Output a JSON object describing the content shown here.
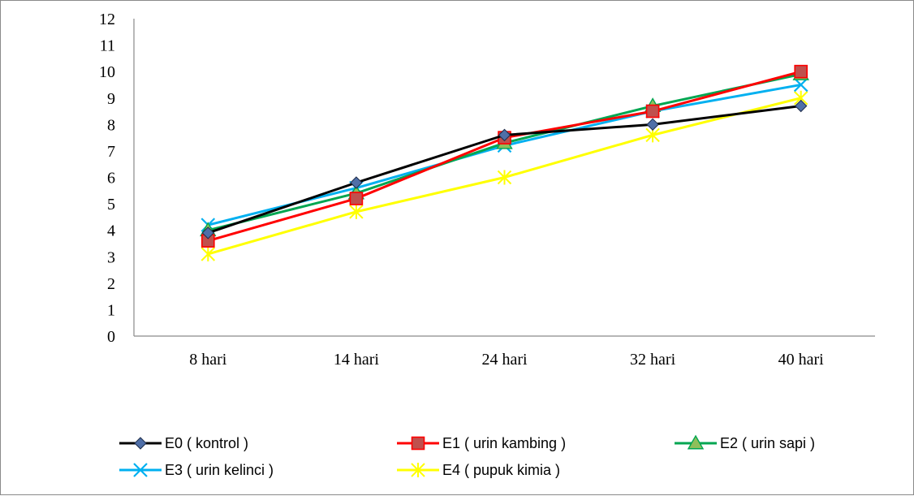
{
  "chart_data": {
    "type": "line",
    "title": "",
    "xlabel": "",
    "ylabel": "",
    "categories": [
      "8 hari",
      "14 hari",
      "24 hari",
      "32 hari",
      "40 hari"
    ],
    "ylim": [
      0,
      12
    ],
    "yticks": [
      0,
      1,
      2,
      3,
      4,
      5,
      6,
      7,
      8,
      9,
      10,
      11,
      12
    ],
    "grid": false,
    "legend_position": "bottom",
    "series": [
      {
        "name": "E0 ( kontrol )",
        "values": [
          3.9,
          5.8,
          7.6,
          8.0,
          8.7
        ],
        "color": "#000000",
        "marker": "diamond",
        "marker_fill": "#4f6fa8"
      },
      {
        "name": "E1 ( urin kambing )",
        "values": [
          3.6,
          5.2,
          7.5,
          8.5,
          10.0
        ],
        "color": "#ff0000",
        "marker": "square",
        "marker_fill": "#c0504d"
      },
      {
        "name": "E2 ( urin sapi )",
        "values": [
          4.0,
          5.4,
          7.3,
          8.7,
          9.9
        ],
        "color": "#00a651",
        "marker": "triangle",
        "marker_fill": "#8fbf5a"
      },
      {
        "name": "E3 ( urin kelinci )",
        "values": [
          4.2,
          5.6,
          7.2,
          8.5,
          9.5
        ],
        "color": "#00b0f0",
        "marker": "x",
        "marker_fill": "#00b0f0"
      },
      {
        "name": "E4 ( pupuk kimia )",
        "values": [
          3.1,
          4.7,
          6.0,
          7.6,
          9.0
        ],
        "color": "#ffff00",
        "marker": "star",
        "marker_fill": "#ffff00"
      }
    ]
  }
}
